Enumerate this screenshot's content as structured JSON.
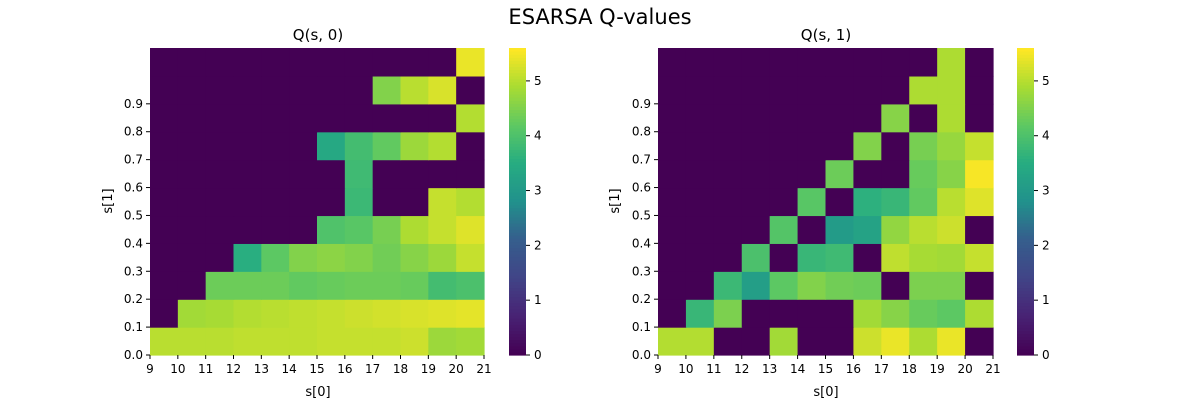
{
  "suptitle": "ESARSA Q-values",
  "chart_data": [
    {
      "type": "heatmap",
      "title": "Q(s, 0)",
      "xlabel": "s[0]",
      "ylabel": "s[1]",
      "x_edges": [
        9,
        10,
        11,
        12,
        13,
        14,
        15,
        16,
        17,
        18,
        19,
        20,
        21
      ],
      "y_tick_labels": [
        "0.0",
        "0.1",
        "0.2",
        "0.3",
        "0.4",
        "0.5",
        "0.6",
        "0.7",
        "0.8",
        "0.9"
      ],
      "rows_note_order": "bottom (0.0) to top",
      "values": [
        [
          5.05,
          5.05,
          5.05,
          5.1,
          5.1,
          5.1,
          5.15,
          5.15,
          5.15,
          5.2,
          4.8,
          4.85
        ],
        [
          0,
          4.85,
          4.9,
          5.0,
          5.05,
          5.1,
          5.15,
          5.2,
          5.25,
          5.3,
          5.35,
          5.4
        ],
        [
          0,
          0,
          4.35,
          4.35,
          4.35,
          4.25,
          4.3,
          4.35,
          4.35,
          4.3,
          3.9,
          4.0
        ],
        [
          0,
          0,
          0,
          3.55,
          4.2,
          4.55,
          4.65,
          4.55,
          4.4,
          4.6,
          4.8,
          5.15
        ],
        [
          0,
          0,
          0,
          0,
          0,
          0,
          4.05,
          4.15,
          4.45,
          4.95,
          5.15,
          5.35
        ],
        [
          0,
          0,
          0,
          0,
          0,
          0,
          0,
          3.8,
          0,
          0,
          5.15,
          5.0
        ],
        [
          0,
          0,
          0,
          0,
          0,
          0,
          0,
          3.85,
          0,
          0,
          0,
          0
        ],
        [
          0,
          0,
          0,
          0,
          0,
          0,
          3.4,
          3.9,
          4.25,
          4.8,
          5.0,
          0
        ],
        [
          0,
          0,
          0,
          0,
          0,
          0,
          0,
          0,
          0,
          0,
          0,
          5.0
        ],
        [
          0,
          0,
          0,
          0,
          0,
          0,
          0,
          0,
          4.55,
          5.05,
          5.3,
          0
        ],
        [
          0,
          0,
          0,
          0,
          0,
          0,
          0,
          0,
          0,
          0,
          0,
          5.45
        ]
      ],
      "colorbar": {
        "min": 0,
        "max": 5.6,
        "ticks": [
          "0",
          "1",
          "2",
          "3",
          "4",
          "5"
        ],
        "colormap": "viridis"
      }
    },
    {
      "type": "heatmap",
      "title": "Q(s, 1)",
      "xlabel": "s[0]",
      "ylabel": "s[1]",
      "x_edges": [
        9,
        10,
        11,
        12,
        13,
        14,
        15,
        16,
        17,
        18,
        19,
        20,
        21
      ],
      "y_tick_labels": [
        "0.0",
        "0.1",
        "0.2",
        "0.3",
        "0.4",
        "0.5",
        "0.6",
        "0.7",
        "0.8",
        "0.9"
      ],
      "rows_note_order": "bottom (0.0) to top",
      "values": [
        [
          5.0,
          5.0,
          0,
          0,
          4.85,
          0,
          0,
          5.2,
          5.45,
          4.95,
          5.45,
          0
        ],
        [
          0,
          3.75,
          4.5,
          0,
          0,
          0,
          0,
          4.85,
          4.6,
          4.3,
          4.2,
          4.95
        ],
        [
          0,
          0,
          3.8,
          3.15,
          4.2,
          4.55,
          4.4,
          4.35,
          0,
          4.5,
          4.5,
          0
        ],
        [
          0,
          0,
          0,
          4.0,
          0,
          3.75,
          3.85,
          0,
          5.1,
          4.9,
          4.85,
          5.15
        ],
        [
          0,
          0,
          0,
          0,
          4.1,
          0,
          3.05,
          3.25,
          4.7,
          5.05,
          5.2,
          0
        ],
        [
          0,
          0,
          0,
          0,
          0,
          4.15,
          0,
          3.6,
          3.75,
          4.25,
          5.05,
          5.35
        ],
        [
          0,
          0,
          0,
          0,
          0,
          0,
          4.35,
          0,
          0,
          4.3,
          4.6,
          5.55
        ],
        [
          0,
          0,
          0,
          0,
          0,
          0,
          0,
          4.55,
          0,
          4.45,
          4.75,
          5.15
        ],
        [
          0,
          0,
          0,
          0,
          0,
          0,
          0,
          0,
          4.6,
          0,
          4.95,
          0
        ],
        [
          0,
          0,
          0,
          0,
          0,
          0,
          0,
          0,
          0,
          4.95,
          4.95,
          0
        ],
        [
          0,
          0,
          0,
          0,
          0,
          0,
          0,
          0,
          0,
          0,
          4.95,
          0
        ]
      ],
      "colorbar": {
        "min": 0,
        "max": 5.6,
        "ticks": [
          "0",
          "1",
          "2",
          "3",
          "4",
          "5"
        ],
        "colormap": "viridis"
      }
    }
  ]
}
